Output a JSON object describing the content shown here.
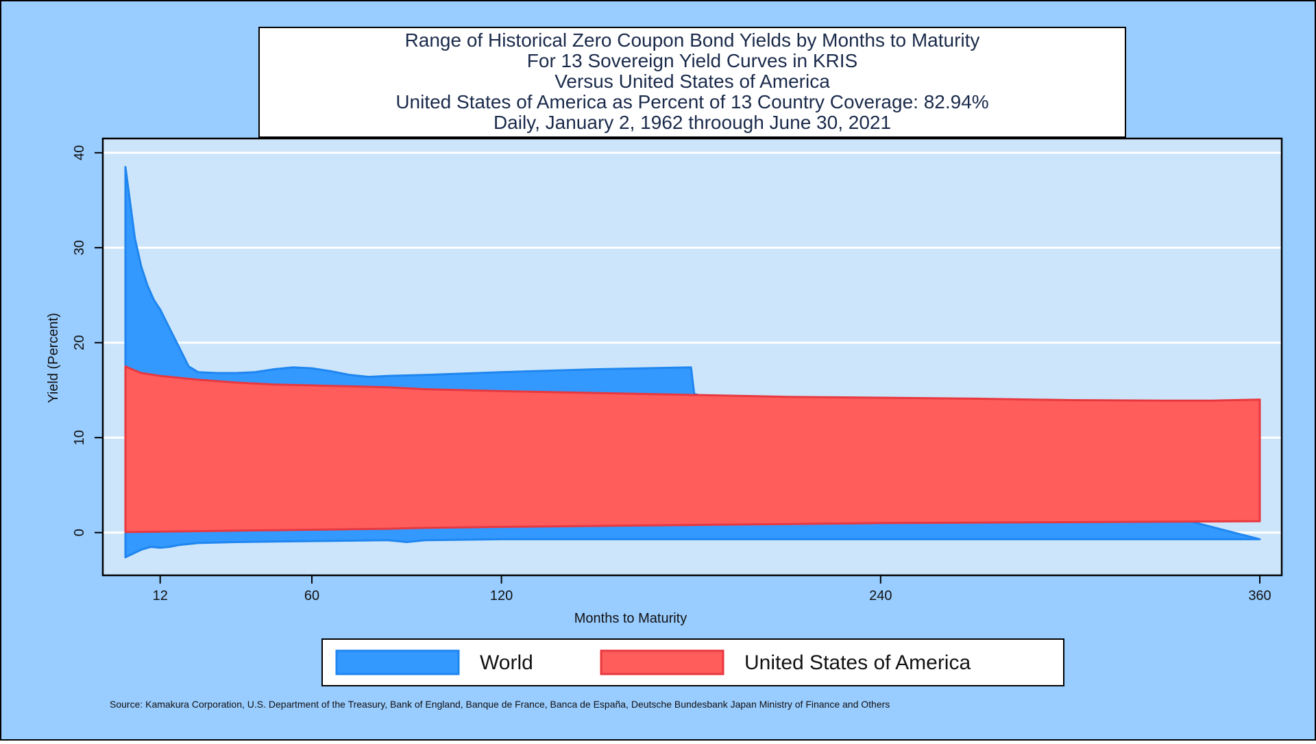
{
  "chart_data": {
    "type": "area",
    "title_lines": [
      "Range of Historical Zero Coupon Bond Yields by Months to Maturity",
      "For 13 Sovereign Yield Curves in KRIS",
      "Versus United States of America",
      "United States of America as Percent of 13 Country Coverage: 82.94%",
      "Daily, January 2, 1962 throough June 30, 2021"
    ],
    "xlabel": "Months to Maturity",
    "ylabel": "Yield (Percent)",
    "xlim": [
      1,
      360
    ],
    "ylim": [
      -4.5,
      41.5
    ],
    "x_ticks": [
      12,
      60,
      120,
      240,
      360
    ],
    "y_ticks": [
      0,
      10,
      20,
      30,
      40
    ],
    "grid": true,
    "legend_position": "bottom",
    "source": "Source: Kamakura Corporation, U.S. Department of the Treasury, Bank of England, Banque de France, Banca de España, Deutsche Bundesbank Japan Ministry of Finance and Others",
    "colors": {
      "outer_background": "#99CCFF",
      "plot_background": "#CCE5FA",
      "gridline": "#FFFFFF",
      "world_fill": "#3399FF",
      "world_stroke": "#1F86F0",
      "usa_fill": "#FF5C5C",
      "usa_stroke": "#E8383F"
    },
    "series": [
      {
        "name": "World",
        "upper": [
          [
            1,
            38.5
          ],
          [
            2,
            36
          ],
          [
            4,
            31
          ],
          [
            6,
            28
          ],
          [
            8,
            26
          ],
          [
            10,
            24.5
          ],
          [
            12,
            23.5
          ],
          [
            15,
            21.5
          ],
          [
            18,
            19.5
          ],
          [
            21,
            17.5
          ],
          [
            24,
            16.9
          ],
          [
            30,
            16.8
          ],
          [
            36,
            16.8
          ],
          [
            42,
            16.9
          ],
          [
            48,
            17.2
          ],
          [
            54,
            17.4
          ],
          [
            60,
            17.3
          ],
          [
            66,
            17.0
          ],
          [
            72,
            16.6
          ],
          [
            78,
            16.4
          ],
          [
            84,
            16.5
          ],
          [
            96,
            16.6
          ],
          [
            120,
            16.9
          ],
          [
            150,
            17.2
          ],
          [
            180,
            17.4
          ],
          [
            181,
            14.6
          ]
        ],
        "lower": [
          [
            1,
            -2.6
          ],
          [
            6,
            -1.8
          ],
          [
            9,
            -1.5
          ],
          [
            12,
            -1.6
          ],
          [
            15,
            -1.5
          ],
          [
            18,
            -1.3
          ],
          [
            24,
            -1.1
          ],
          [
            36,
            -1.0
          ],
          [
            48,
            -0.95
          ],
          [
            60,
            -0.9
          ],
          [
            72,
            -0.85
          ],
          [
            84,
            -0.8
          ],
          [
            90,
            -1.0
          ],
          [
            96,
            -0.8
          ],
          [
            120,
            -0.7
          ],
          [
            180,
            -0.7
          ],
          [
            240,
            -0.7
          ],
          [
            300,
            -0.7
          ],
          [
            360,
            -0.7
          ]
        ]
      },
      {
        "name": "United States of America",
        "upper": [
          [
            1,
            17.5
          ],
          [
            3,
            17.2
          ],
          [
            6,
            16.8
          ],
          [
            12,
            16.5
          ],
          [
            24,
            16.1
          ],
          [
            36,
            15.8
          ],
          [
            48,
            15.6
          ],
          [
            60,
            15.5
          ],
          [
            72,
            15.4
          ],
          [
            84,
            15.3
          ],
          [
            96,
            15.1
          ],
          [
            120,
            14.9
          ],
          [
            150,
            14.7
          ],
          [
            180,
            14.5
          ],
          [
            210,
            14.3
          ],
          [
            240,
            14.2
          ],
          [
            270,
            14.1
          ],
          [
            300,
            13.95
          ],
          [
            330,
            13.9
          ],
          [
            345,
            13.9
          ],
          [
            360,
            14.0
          ]
        ],
        "lower": [
          [
            1,
            0.05
          ],
          [
            12,
            0.1
          ],
          [
            24,
            0.15
          ],
          [
            36,
            0.2
          ],
          [
            48,
            0.25
          ],
          [
            60,
            0.3
          ],
          [
            72,
            0.35
          ],
          [
            84,
            0.4
          ],
          [
            96,
            0.5
          ],
          [
            120,
            0.6
          ],
          [
            150,
            0.7
          ],
          [
            180,
            0.8
          ],
          [
            210,
            0.9
          ],
          [
            240,
            1.0
          ],
          [
            270,
            1.05
          ],
          [
            300,
            1.1
          ],
          [
            330,
            1.15
          ],
          [
            360,
            1.2
          ]
        ]
      }
    ]
  }
}
